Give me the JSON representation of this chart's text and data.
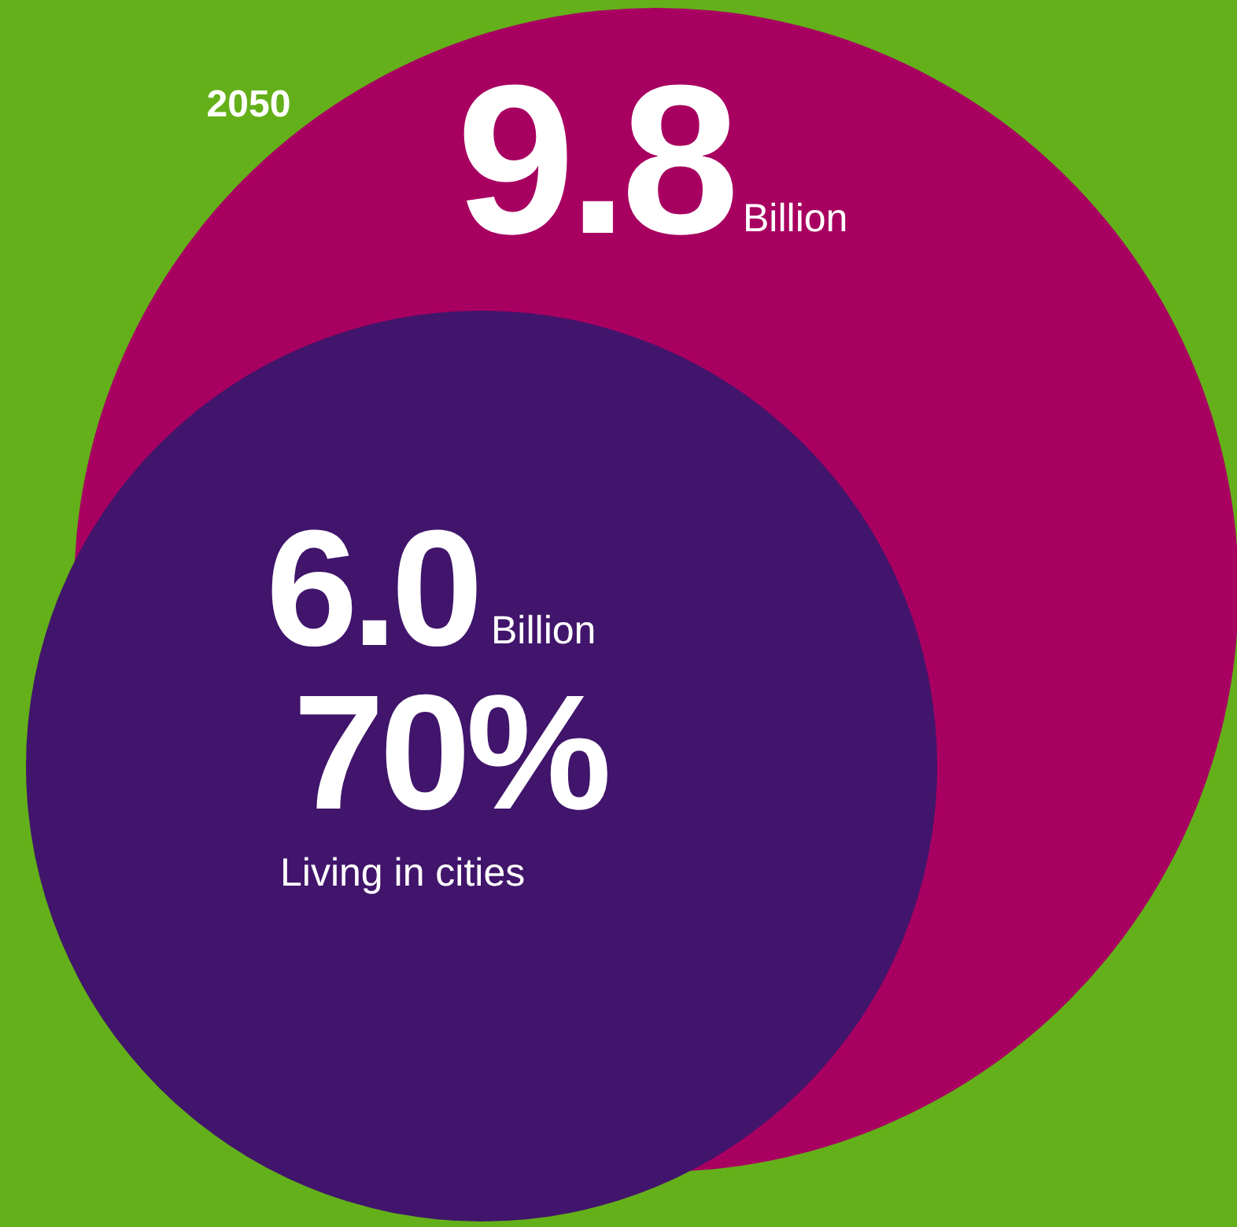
{
  "chart_data": {
    "type": "other",
    "title": "2050",
    "categories": [
      null,
      "Living in cities"
    ],
    "values": [
      9.8,
      6.0
    ],
    "value_labels": [
      "9.8",
      "6.0"
    ],
    "colors": [
      "#a80061",
      "#41156b"
    ],
    "annotations": [
      "Billion",
      "Billion",
      "70%"
    ]
  }
}
